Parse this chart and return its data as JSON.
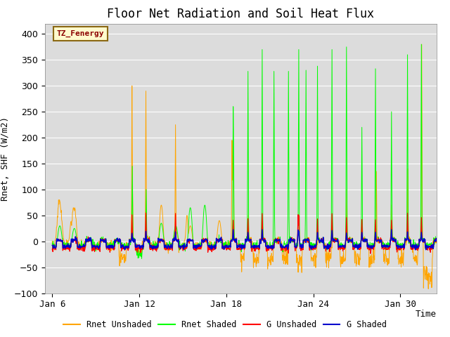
{
  "title": "Floor Net Radiation and Soil Heat Flux",
  "ylabel": "Rnet, SHF (W/m2)",
  "xlabel": "Time",
  "annotation": "TZ_Fenergy",
  "ylim": [
    -100,
    420
  ],
  "yticks": [
    -100,
    -50,
    0,
    50,
    100,
    150,
    200,
    250,
    300,
    350,
    400
  ],
  "xtick_labels": [
    "Jan 6",
    "Jan 12",
    "Jan 18",
    "Jan 24",
    "Jan 30"
  ],
  "xtick_positions": [
    6,
    12,
    18,
    24,
    30
  ],
  "colors": {
    "rnet_unshaded": "#FFA500",
    "rnet_shaded": "#00FF00",
    "g_unshaded": "#FF0000",
    "g_shaded": "#0000CC"
  },
  "legend_labels": [
    "Rnet Unshaded",
    "Rnet Shaded",
    "G Unshaded",
    "G Shaded"
  ],
  "bg_color": "#DCDCDC",
  "fig_bg": "#FFFFFF",
  "xlim": [
    5.5,
    32.5
  ]
}
